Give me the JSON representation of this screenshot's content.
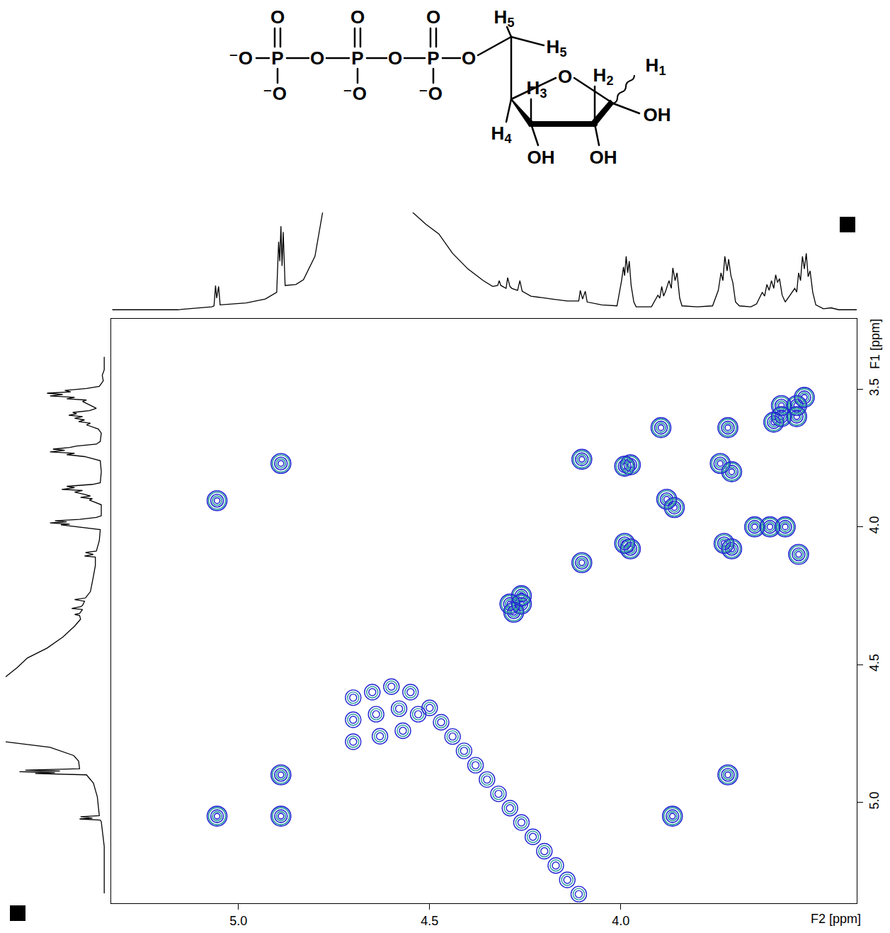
{
  "chart_data": {
    "type": "contour",
    "xlabel": "F2 [ppm]",
    "ylabel": "F1 [ppm]",
    "xlim": [
      5.333,
      3.383
    ],
    "ylim": [
      5.366,
      3.245
    ],
    "xticks": [
      {
        "value": 5,
        "label": "5.0"
      },
      4.5,
      {
        "value": 4,
        "label": "4.0"
      }
    ],
    "yticks": [
      3.5,
      {
        "value": 4,
        "label": "4.0"
      },
      4.5,
      {
        "value": 5,
        "label": "5.0"
      }
    ],
    "grid": false,
    "colors": [
      "#2626d4",
      "#2a9c9c"
    ],
    "peaks": {
      "x": [
        5.056,
        4.889,
        4.102,
        3.99,
        3.975,
        3.72,
        3.895,
        3.58,
        3.54,
        3.58,
        3.54,
        3.52,
        3.6,
        3.74,
        3.71,
        3.88,
        3.86,
        3.99,
        3.975,
        3.73,
        3.71,
        4.102,
        4.29,
        4.26,
        4.28,
        4.26,
        3.61,
        3.65,
        3.57,
        3.535,
        4.889,
        4.889,
        5.056,
        3.865,
        3.72
      ],
      "y": [
        3.905,
        3.77,
        3.755,
        3.78,
        3.775,
        3.64,
        3.64,
        3.56,
        3.56,
        3.6,
        3.6,
        3.53,
        3.62,
        3.77,
        3.8,
        3.9,
        3.93,
        4.06,
        4.08,
        4.06,
        4.08,
        4.13,
        4.28,
        4.28,
        4.31,
        4.25,
        4.0,
        4.0,
        4.0,
        4.1,
        4.9,
        5.05,
        5.05,
        5.05,
        4.9
      ]
    },
    "t1_noise": {
      "x": [
        4.7,
        4.65,
        4.6,
        4.7,
        4.64,
        4.58,
        4.55,
        4.7,
        4.63,
        4.57,
        4.53,
        4.5,
        4.47,
        4.44,
        4.41,
        4.38,
        4.35,
        4.32,
        4.29,
        4.26,
        4.23,
        4.2,
        4.17,
        4.14,
        4.11
      ],
      "y": [
        4.62,
        4.6,
        4.58,
        4.7,
        4.68,
        4.66,
        4.6,
        4.78,
        4.76,
        4.74,
        4.68,
        4.657,
        4.709,
        4.761,
        4.813,
        4.865,
        4.917,
        4.969,
        5.021,
        5.073,
        5.125,
        5.177,
        5.229,
        5.281,
        5.333
      ]
    },
    "projection": {
      "color": "#000000",
      "ylim": [
        -2,
        100
      ],
      "ppm": [
        5.33,
        5.16,
        5.07,
        5.064,
        5.06,
        5.057,
        5.052,
        5.048,
        4.98,
        4.93,
        4.9,
        4.895,
        4.892,
        4.889,
        4.886,
        4.883,
        4.878,
        4.85,
        4.83,
        4.8,
        4.78,
        4.76,
        4.66,
        4.56,
        4.544,
        4.51,
        4.476,
        4.44,
        4.4,
        4.36,
        4.335,
        4.322,
        4.318,
        4.314,
        4.3,
        4.296,
        4.29,
        4.285,
        4.27,
        4.264,
        4.258,
        4.235,
        4.18,
        4.14,
        4.11,
        4.106,
        4.1,
        4.093,
        4.088,
        4.05,
        4.01,
        3.998,
        3.993,
        3.99,
        3.986,
        3.982,
        3.978,
        3.973,
        3.966,
        3.96,
        3.92,
        3.903,
        3.898,
        3.893,
        3.888,
        3.882,
        3.874,
        3.868,
        3.864,
        3.858,
        3.853,
        3.846,
        3.84,
        3.8,
        3.76,
        3.745,
        3.738,
        3.733,
        3.728,
        3.722,
        3.718,
        3.712,
        3.707,
        3.7,
        3.69,
        3.66,
        3.645,
        3.63,
        3.624,
        3.618,
        3.612,
        3.606,
        3.6,
        3.595,
        3.59,
        3.585,
        3.578,
        3.57,
        3.545,
        3.54,
        3.535,
        3.53,
        3.525,
        3.52,
        3.515,
        3.51,
        3.505,
        3.498,
        3.49,
        3.47,
        3.45,
        3.43,
        3.383
      ],
      "intensity": [
        0,
        0,
        3,
        4,
        25,
        12,
        24,
        5,
        7,
        11,
        18,
        70,
        50,
        86,
        45,
        80,
        25,
        26,
        31,
        55,
        100,
        180,
        300,
        180,
        100,
        88,
        78,
        58,
        42,
        30,
        24,
        25,
        30,
        25,
        22,
        33,
        24,
        22,
        20,
        30,
        19,
        14,
        11,
        9,
        9,
        20,
        11,
        19,
        8,
        5,
        4,
        30,
        44,
        35,
        55,
        38,
        50,
        25,
        8,
        3,
        3,
        15,
        12,
        24,
        14,
        20,
        30,
        22,
        43,
        30,
        38,
        12,
        4,
        3,
        4,
        20,
        38,
        30,
        55,
        40,
        52,
        35,
        28,
        8,
        4,
        3,
        6,
        18,
        14,
        26,
        20,
        30,
        22,
        36,
        28,
        32,
        15,
        8,
        22,
        18,
        38,
        30,
        55,
        42,
        58,
        34,
        40,
        18,
        5,
        1,
        2,
        0,
        0
      ]
    }
  },
  "structure": {
    "labels": [
      "⁻O",
      "O",
      "P",
      "⁻O",
      "O",
      "O",
      "P",
      "⁻O",
      "O",
      "O",
      "P",
      "⁻O",
      "O",
      "H5",
      "H5",
      "H1",
      "H3",
      "O",
      "H2",
      "OH",
      "H4",
      "OH",
      "OH"
    ]
  }
}
